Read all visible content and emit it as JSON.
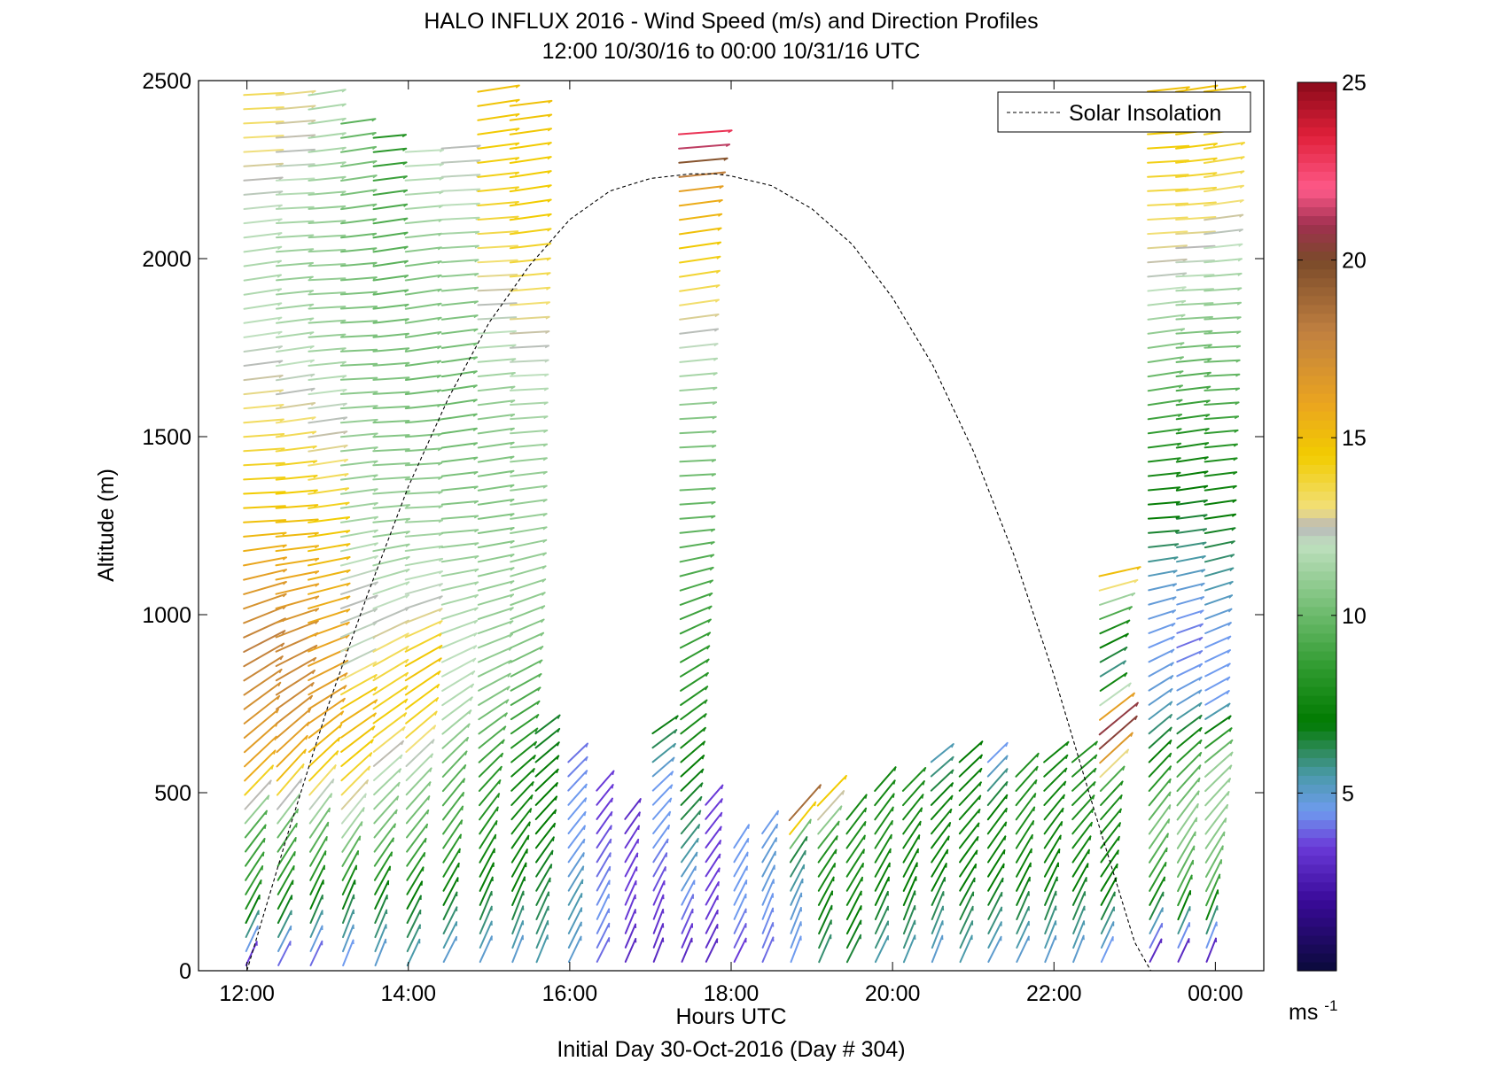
{
  "chart_data": {
    "type": "quiver",
    "title": "HALO INFLUX 2016 - Wind Speed (m/s) and Direction Profiles",
    "subtitle": "12:00 10/30/16 to 00:00 10/31/16  UTC",
    "xlabel": "Hours UTC",
    "ylabel": "Altitude (m)",
    "footer": "Initial Day 30-Oct-2016 (Day # 304)",
    "xlim": [
      11.4,
      24.6
    ],
    "ylim": [
      0,
      2500
    ],
    "x_ticks": [
      12,
      14,
      16,
      18,
      20,
      22,
      24
    ],
    "x_tick_labels": [
      "12:00",
      "14:00",
      "16:00",
      "18:00",
      "20:00",
      "22:00",
      "00:00"
    ],
    "y_ticks": [
      0,
      500,
      1000,
      1500,
      2000,
      2500
    ],
    "y_tick_labels": [
      "0",
      "500",
      "1000",
      "1500",
      "2000",
      "2500"
    ],
    "legend": {
      "entries": [
        "Solar Insolation"
      ],
      "placement": "top-right"
    },
    "colorbar": {
      "range": [
        0,
        25
      ],
      "ticks": [
        5,
        10,
        15,
        20,
        25
      ],
      "tick_labels": [
        "5",
        "10",
        "15",
        "20",
        "25"
      ],
      "unit_label": "ms",
      "unit_exponent": "-1",
      "stops": [
        {
          "v": 0,
          "c": "#0a0a3a"
        },
        {
          "v": 2,
          "c": "#3a0a9a"
        },
        {
          "v": 3.5,
          "c": "#6a3ad8"
        },
        {
          "v": 4.5,
          "c": "#6f9bef"
        },
        {
          "v": 5.5,
          "c": "#4a9aaa"
        },
        {
          "v": 6.2,
          "c": "#2e8a5a"
        },
        {
          "v": 7,
          "c": "#007a00"
        },
        {
          "v": 8.5,
          "c": "#2e9a2e"
        },
        {
          "v": 10,
          "c": "#6bba6b"
        },
        {
          "v": 12,
          "c": "#bfe0bf"
        },
        {
          "v": 12.5,
          "c": "#b8b8b8"
        },
        {
          "v": 13,
          "c": "#f2e07a"
        },
        {
          "v": 14.5,
          "c": "#f2cc00"
        },
        {
          "v": 16,
          "c": "#eaa420"
        },
        {
          "v": 18,
          "c": "#c08040"
        },
        {
          "v": 20,
          "c": "#7a4a2a"
        },
        {
          "v": 21,
          "c": "#a03050"
        },
        {
          "v": 22,
          "c": "#ff5a8a"
        },
        {
          "v": 23.5,
          "c": "#e0203a"
        },
        {
          "v": 25,
          "c": "#8a0a1a"
        }
      ]
    },
    "solar_insolation": {
      "x": [
        12.0,
        12.5,
        13.0,
        13.5,
        14.0,
        14.5,
        15.0,
        15.5,
        16.0,
        16.5,
        17.0,
        17.5,
        17.8,
        18.0,
        18.5,
        19.0,
        19.5,
        20.0,
        20.5,
        21.0,
        21.5,
        22.0,
        22.5,
        23.0,
        23.2
      ],
      "y": [
        0,
        380,
        740,
        1060,
        1360,
        1610,
        1820,
        1980,
        2110,
        2190,
        2225,
        2238,
        2238,
        2232,
        2205,
        2140,
        2040,
        1890,
        1700,
        1460,
        1170,
        830,
        450,
        80,
        0
      ]
    },
    "profiles": [
      {
        "time": 12.0,
        "zmin": 20,
        "zmax": 2480,
        "speeds": [
          3.5,
          8.5,
          9.0,
          16.0,
          17.0,
          18.0,
          16.5,
          15.0,
          14.0,
          13.0,
          12.0,
          11.5,
          12.0,
          13.0,
          13.5
        ]
      },
      {
        "time": 12.4,
        "zmin": 20,
        "zmax": 2490,
        "speeds": [
          4.0,
          8.0,
          9.5,
          15.5,
          17.5,
          17.5,
          16.0,
          15.0,
          14.0,
          12.5,
          11.5,
          11.0,
          11.5,
          12.5,
          13.0
        ]
      },
      {
        "time": 12.8,
        "zmin": 20,
        "zmax": 2490,
        "speeds": [
          4.0,
          7.5,
          10.0,
          14.5,
          16.5,
          16.0,
          15.5,
          14.5,
          13.0,
          12.0,
          11.0,
          11.0,
          11.0,
          11.5,
          11.5
        ]
      },
      {
        "time": 13.2,
        "zmin": 20,
        "zmax": 2400,
        "speeds": [
          4.5,
          7.0,
          11.0,
          14.0,
          15.5,
          12.0,
          12.5,
          11.5,
          11.0,
          11.0,
          10.5,
          10.5,
          10.0,
          10.5,
          9.5
        ]
      },
      {
        "time": 13.6,
        "zmin": 20,
        "zmax": 2360,
        "speeds": [
          5.0,
          7.0,
          10.0,
          11.5,
          14.5,
          13.5,
          12.0,
          11.0,
          11.0,
          10.5,
          10.5,
          10.0,
          9.5,
          9.0,
          8.0
        ]
      },
      {
        "time": 14.0,
        "zmin": 20,
        "zmax": 2310,
        "speeds": [
          5.5,
          7.0,
          9.5,
          11.0,
          14.0,
          15.0,
          12.5,
          11.5,
          11.0,
          10.5,
          10.0,
          10.5,
          10.5,
          11.5,
          12.0
        ]
      },
      {
        "time": 14.45,
        "zmin": 30,
        "zmax": 2330,
        "speeds": [
          5.0,
          7.0,
          9.0,
          9.5,
          11.5,
          12.0,
          11.5,
          11.0,
          10.5,
          10.0,
          10.0,
          10.5,
          11.0,
          12.0,
          12.5
        ]
      },
      {
        "time": 14.9,
        "zmin": 30,
        "zmax": 2500,
        "speeds": [
          5.0,
          7.0,
          8.0,
          8.5,
          10.5,
          11.0,
          11.0,
          10.5,
          10.5,
          11.0,
          12.0,
          13.0,
          14.0,
          14.5,
          15.0
        ]
      },
      {
        "time": 15.3,
        "zmin": 30,
        "zmax": 2460,
        "speeds": [
          5.0,
          7.0,
          7.5,
          7.5,
          9.0,
          10.5,
          11.0,
          11.0,
          11.0,
          11.5,
          12.5,
          13.5,
          14.5,
          14.5,
          15.0
        ]
      },
      {
        "time": 15.6,
        "zmin": 30,
        "zmax": 700,
        "speeds": [
          5.5,
          6.5,
          7.0,
          7.0,
          6.5
        ]
      },
      {
        "time": 16.0,
        "zmin": 30,
        "zmax": 620,
        "speeds": [
          5.0,
          5.5,
          4.5,
          4.5,
          4.0
        ]
      },
      {
        "time": 16.35,
        "zmin": 30,
        "zmax": 540,
        "speeds": [
          4.0,
          4.5,
          4.0,
          3.5,
          3.5
        ]
      },
      {
        "time": 16.7,
        "zmin": 30,
        "zmax": 460,
        "speeds": [
          3.0,
          3.5,
          3.5,
          3.0
        ]
      },
      {
        "time": 17.05,
        "zmin": 30,
        "zmax": 680,
        "speeds": [
          3.0,
          3.5,
          4.5,
          4.5,
          7.0
        ]
      },
      {
        "time": 17.4,
        "zmin": 30,
        "zmax": 2350,
        "speeds": [
          3.0,
          4.5,
          6.0,
          7.0,
          8.0,
          8.5,
          9.0,
          9.5,
          10.0,
          10.5,
          11.5,
          13.0,
          14.5,
          16.0,
          23.0
        ]
      },
      {
        "time": 17.7,
        "zmin": 30,
        "zmax": 470,
        "speeds": [
          3.0,
          3.5,
          3.5,
          3.5
        ]
      },
      {
        "time": 18.05,
        "zmin": 30,
        "zmax": 380,
        "speeds": [
          3.5,
          4.5,
          4.5,
          4.5
        ]
      },
      {
        "time": 18.4,
        "zmin": 30,
        "zmax": 410,
        "speeds": [
          4.0,
          4.5,
          5.0,
          4.5
        ]
      },
      {
        "time": 18.75,
        "zmin": 30,
        "zmax": 460,
        "speeds": [
          4.5,
          5.0,
          6.5,
          22.0
        ]
      },
      {
        "time": 19.1,
        "zmin": 30,
        "zmax": 480,
        "speeds": [
          6.0,
          7.5,
          8.0,
          15.0
        ]
      },
      {
        "time": 19.45,
        "zmin": 30,
        "zmax": 460,
        "speeds": [
          6.5,
          7.5,
          8.0,
          7.5
        ]
      },
      {
        "time": 19.8,
        "zmin": 30,
        "zmax": 520,
        "speeds": [
          5.5,
          7.0,
          8.0,
          7.5
        ]
      },
      {
        "time": 20.15,
        "zmin": 30,
        "zmax": 520,
        "speeds": [
          5.5,
          7.0,
          7.5,
          8.0
        ]
      },
      {
        "time": 20.5,
        "zmin": 30,
        "zmax": 620,
        "speeds": [
          5.0,
          7.0,
          7.5,
          5.0
        ]
      },
      {
        "time": 20.85,
        "zmin": 30,
        "zmax": 590,
        "speeds": [
          5.5,
          7.0,
          7.5,
          7.0
        ]
      },
      {
        "time": 21.2,
        "zmin": 30,
        "zmax": 590,
        "speeds": [
          5.0,
          7.0,
          7.5,
          4.5
        ]
      },
      {
        "time": 21.55,
        "zmin": 30,
        "zmax": 560,
        "speeds": [
          5.0,
          7.0,
          8.0,
          8.0
        ]
      },
      {
        "time": 21.9,
        "zmin": 30,
        "zmax": 590,
        "speeds": [
          5.0,
          7.0,
          7.5,
          7.5
        ]
      },
      {
        "time": 22.25,
        "zmin": 30,
        "zmax": 600,
        "speeds": [
          5.0,
          7.0,
          8.0,
          8.0
        ]
      },
      {
        "time": 22.6,
        "zmin": 30,
        "zmax": 1120,
        "speeds": [
          4.5,
          7.0,
          7.5,
          8.0,
          22.5,
          5.5,
          8.0,
          15.5
        ]
      },
      {
        "time": 23.2,
        "zmin": 30,
        "zmax": 2500,
        "speeds": [
          3.0,
          8.0,
          10.5,
          7.5,
          5.0,
          4.5,
          5.0,
          7.0,
          8.0,
          9.5,
          11.0,
          12.5,
          13.5,
          14.5,
          15.0
        ]
      },
      {
        "time": 23.55,
        "zmin": 30,
        "zmax": 2500,
        "speeds": [
          3.0,
          9.0,
          11.0,
          9.0,
          5.0,
          4.0,
          5.0,
          6.5,
          7.5,
          9.0,
          10.5,
          12.0,
          13.5,
          14.5,
          15.0
        ]
      },
      {
        "time": 23.9,
        "zmin": 30,
        "zmax": 2500,
        "speeds": [
          3.0,
          9.5,
          11.0,
          11.0,
          4.5,
          4.5,
          5.5,
          7.0,
          8.0,
          9.5,
          10.5,
          11.5,
          13.0,
          14.0,
          15.0
        ]
      }
    ]
  }
}
